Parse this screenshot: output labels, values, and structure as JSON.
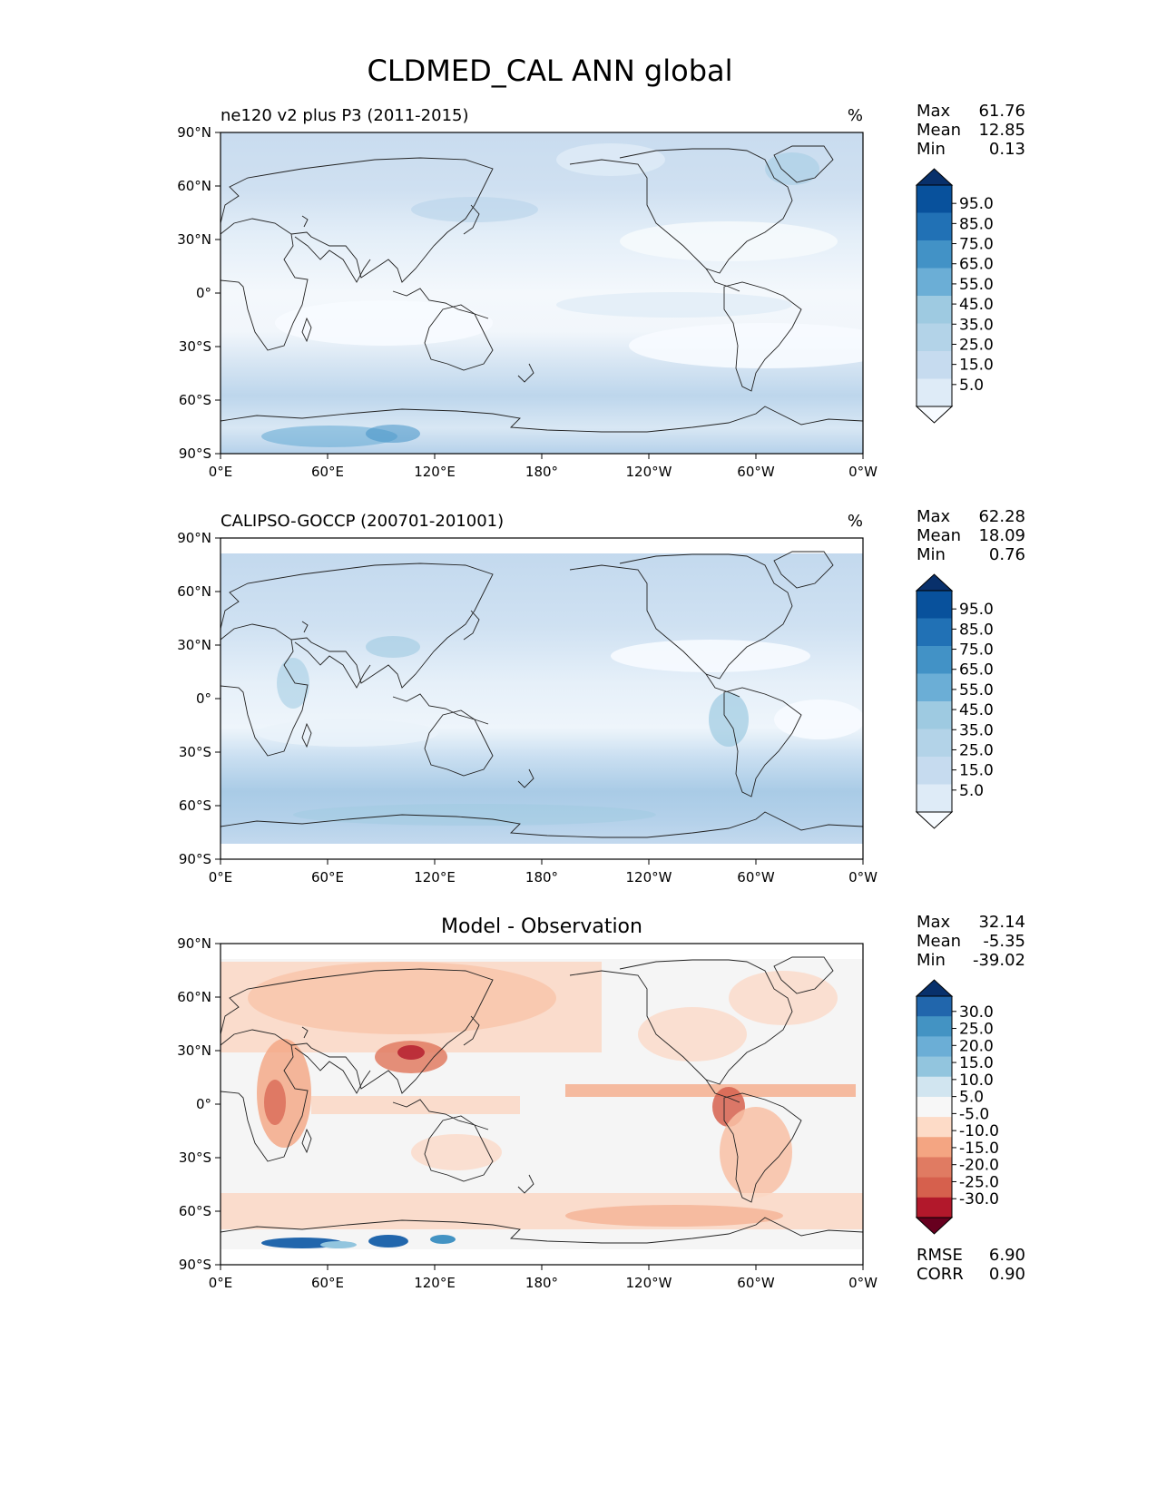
{
  "title": "CLDMED_CAL ANN global",
  "lat_ticks": [
    "90°N",
    "60°N",
    "30°N",
    "0°",
    "30°S",
    "60°S",
    "90°S"
  ],
  "lon_ticks": [
    "0°E",
    "60°E",
    "120°E",
    "180°",
    "120°W",
    "60°W",
    "0°W"
  ],
  "panels": [
    {
      "id": "model",
      "left_title": "ne120 v2 plus P3 (2011-2015)",
      "center_title": "",
      "units": "%",
      "stats": [
        {
          "label": "Max",
          "value": "61.76"
        },
        {
          "label": "Mean",
          "value": "12.85"
        },
        {
          "label": "Min",
          "value": "0.13"
        }
      ],
      "colorbar": {
        "labels": [
          "95.0",
          "85.0",
          "75.0",
          "65.0",
          "55.0",
          "45.0",
          "35.0",
          "25.0",
          "15.0",
          "5.0"
        ],
        "colors": [
          "#08306b",
          "#08519c",
          "#2171b5",
          "#4292c6",
          "#6baed6",
          "#9ecae1",
          "#b3d3e8",
          "#c6dbef",
          "#deebf7",
          "#f7fbff"
        ]
      }
    },
    {
      "id": "obs",
      "left_title": "CALIPSO-GOCCP (200701-201001)",
      "center_title": "",
      "units": "%",
      "stats": [
        {
          "label": "Max",
          "value": "62.28"
        },
        {
          "label": "Mean",
          "value": "18.09"
        },
        {
          "label": "Min",
          "value": "0.76"
        }
      ],
      "colorbar": {
        "labels": [
          "95.0",
          "85.0",
          "75.0",
          "65.0",
          "55.0",
          "45.0",
          "35.0",
          "25.0",
          "15.0",
          "5.0"
        ],
        "colors": [
          "#08306b",
          "#08519c",
          "#2171b5",
          "#4292c6",
          "#6baed6",
          "#9ecae1",
          "#b3d3e8",
          "#c6dbef",
          "#deebf7",
          "#f7fbff"
        ]
      }
    },
    {
      "id": "diff",
      "left_title": "",
      "center_title": "Model - Observation",
      "units": "",
      "stats": [
        {
          "label": "Max",
          "value": "32.14"
        },
        {
          "label": "Mean",
          "value": "-5.35"
        },
        {
          "label": "Min",
          "value": "-39.02"
        }
      ],
      "colorbar": {
        "labels": [
          "30.0",
          "25.0",
          "20.0",
          "15.0",
          "10.0",
          "5.0",
          "-5.0",
          "-10.0",
          "-15.0",
          "-20.0",
          "-25.0",
          "-30.0"
        ],
        "colors": [
          "#08306b",
          "#2166ac",
          "#4393c3",
          "#6baed6",
          "#92c5de",
          "#d1e5f0",
          "#f7f7f7",
          "#fddbc7",
          "#f4a582",
          "#e07b62",
          "#d6604d",
          "#b2182b",
          "#67001f"
        ]
      },
      "bottom_stats": [
        {
          "label": "RMSE",
          "value": "6.90"
        },
        {
          "label": "CORR",
          "value": "0.90"
        }
      ]
    }
  ]
}
